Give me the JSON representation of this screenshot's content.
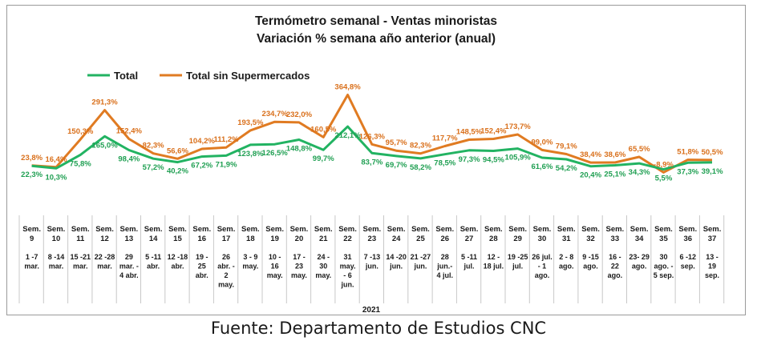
{
  "chart_data": {
    "type": "line",
    "title": "Termómetro semanal - Ventas minoristas",
    "subtitle": "Variación % semana año anterior (anual)",
    "year_label": "2021",
    "colors": {
      "Total": "#22b362",
      "Total sin Supermercados": "#e07b22"
    },
    "categories": [
      {
        "week": "Sem. 9",
        "dates": [
          "1 -7",
          "mar."
        ]
      },
      {
        "week": "Sem. 10",
        "dates": [
          "8 -14",
          "mar."
        ]
      },
      {
        "week": "Sem. 11",
        "dates": [
          "15 -21",
          "mar."
        ]
      },
      {
        "week": "Sem. 12",
        "dates": [
          "22 -28",
          "mar."
        ]
      },
      {
        "week": "Sem. 13",
        "dates": [
          "29",
          "mar. -",
          "4 abr."
        ]
      },
      {
        "week": "Sem. 14",
        "dates": [
          "5 -11",
          "abr."
        ]
      },
      {
        "week": "Sem. 15",
        "dates": [
          "12 -18",
          "abr."
        ]
      },
      {
        "week": "Sem. 16",
        "dates": [
          "19 -",
          "25",
          "abr."
        ]
      },
      {
        "week": "Sem. 17",
        "dates": [
          "26",
          "abr. -",
          "2",
          "may."
        ]
      },
      {
        "week": "Sem. 18",
        "dates": [
          "3 - 9",
          "may."
        ]
      },
      {
        "week": "Sem. 19",
        "dates": [
          "10 -",
          "16",
          "may."
        ]
      },
      {
        "week": "Sem. 20",
        "dates": [
          "17 -",
          "23",
          "may."
        ]
      },
      {
        "week": "Sem. 21",
        "dates": [
          "24 -",
          "30",
          "may."
        ]
      },
      {
        "week": "Sem. 22",
        "dates": [
          "31",
          "may.",
          "- 6",
          "jun."
        ]
      },
      {
        "week": "Sem. 23",
        "dates": [
          "7 -13",
          "jun."
        ]
      },
      {
        "week": "Sem. 24",
        "dates": [
          "14 -20",
          "jun."
        ]
      },
      {
        "week": "Sem. 25",
        "dates": [
          "21 -27",
          "jun."
        ]
      },
      {
        "week": "Sem. 26",
        "dates": [
          "28",
          "jun.-",
          "4 jul."
        ]
      },
      {
        "week": "Sem. 27",
        "dates": [
          "5 -11",
          "jul."
        ]
      },
      {
        "week": "Sem. 28",
        "dates": [
          "12 -",
          "18 jul."
        ]
      },
      {
        "week": "Sem. 29",
        "dates": [
          "19 -25",
          "jul."
        ]
      },
      {
        "week": "Sem. 30",
        "dates": [
          "26 jul.",
          "- 1",
          "ago."
        ]
      },
      {
        "week": "Sem. 31",
        "dates": [
          "2 - 8",
          "ago."
        ]
      },
      {
        "week": "Sem. 32",
        "dates": [
          "9 -15",
          "ago."
        ]
      },
      {
        "week": "Sem. 33",
        "dates": [
          "16 -",
          "22",
          "ago."
        ]
      },
      {
        "week": "Sem. 34",
        "dates": [
          "23- 29",
          "ago."
        ]
      },
      {
        "week": "Sem. 35",
        "dates": [
          "30",
          "ago. -",
          "5 sep."
        ]
      },
      {
        "week": "Sem. 36",
        "dates": [
          "6 -12",
          "sep."
        ]
      },
      {
        "week": "Sem. 37",
        "dates": [
          "13 -",
          "19",
          "sep."
        ]
      }
    ],
    "series": [
      {
        "name": "Total",
        "values": [
          22.3,
          10.3,
          75.8,
          165.0,
          98.4,
          57.2,
          40.2,
          67.2,
          71.9,
          123.8,
          126.5,
          148.8,
          99.7,
          212.1,
          83.7,
          69.7,
          58.2,
          78.5,
          97.3,
          94.5,
          105.9,
          61.6,
          54.2,
          20.4,
          25.1,
          34.3,
          5.5,
          37.3,
          39.1
        ],
        "labels": [
          "22,3%",
          "10,3%",
          "75,8%",
          "165,0%",
          "98,4%",
          "57,2%",
          "40,2%",
          "67,2%",
          "71,9%",
          "123,8%",
          "126,5%",
          "148,8%",
          "99,7%",
          "212,1%",
          "83,7%",
          "69,7%",
          "58,2%",
          "78,5%",
          "97,3%",
          "94,5%",
          "105,9%",
          "61,6%",
          "54,2%",
          "20,4%",
          "25,1%",
          "34,3%",
          "5,5%",
          "37,3%",
          "39,1%"
        ]
      },
      {
        "name": "Total sin Supermercados",
        "values": [
          23.8,
          16.4,
          150.3,
          291.3,
          152.4,
          82.3,
          56.6,
          104.2,
          111.2,
          193.5,
          234.7,
          232.0,
          160.5,
          364.8,
          126.3,
          95.7,
          82.3,
          117.7,
          148.5,
          152.4,
          173.7,
          99.0,
          79.1,
          38.4,
          38.6,
          65.5,
          -8.9,
          51.8,
          50.5
        ],
        "labels": [
          "23,8%",
          "16,4%",
          "150,3%",
          "291,3%",
          "152,4%",
          "82,3%",
          "56,6%",
          "104,2%",
          "111,2%",
          "193,5%",
          "234,7%",
          "232,0%",
          "160,5%",
          "364,8%",
          "126,3%",
          "95,7%",
          "82,3%",
          "117,7%",
          "148,5%",
          "152,4%",
          "173,7%",
          "99,0%",
          "79,1%",
          "38,4%",
          "38,6%",
          "65,5%",
          "-8,9%",
          "51,8%",
          "50,5%"
        ]
      }
    ]
  },
  "source": "Fuente: Departamento de Estudios CNC"
}
